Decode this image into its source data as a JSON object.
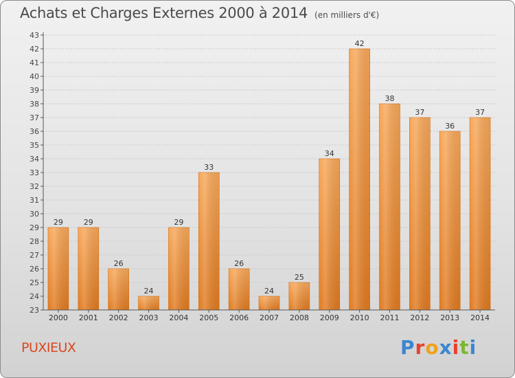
{
  "header": {
    "title": "Achats et Charges Externes 2000 à 2014",
    "unit": "(en milliers d'€)"
  },
  "footer": {
    "commune": "PUXIEUX",
    "logo_text": "Proxiti",
    "logo_colors": [
      "#3a86d1",
      "#e8412c",
      "#f0a21a",
      "#3a86d1",
      "#e8412c",
      "#7cb82f",
      "#3a86d1"
    ]
  },
  "colors": {
    "bar_top": "#f7a85a",
    "bar_bottom": "#e07a20",
    "axis": "#555555",
    "grid": "#c8c8c8",
    "commune": "#d9481f"
  },
  "chart_data": {
    "type": "bar",
    "title": "Achats et Charges Externes 2000 à 2014",
    "subtitle": "(en milliers d'€)",
    "categories": [
      "2000",
      "2001",
      "2002",
      "2003",
      "2004",
      "2005",
      "2006",
      "2007",
      "2008",
      "2009",
      "2010",
      "2011",
      "2012",
      "2013",
      "2014"
    ],
    "values": [
      29,
      29,
      26,
      24,
      29,
      33,
      26,
      24,
      25,
      34,
      42,
      38,
      37,
      36,
      37
    ],
    "ylim": [
      23,
      43
    ],
    "yticks": [
      23,
      24,
      25,
      26,
      27,
      28,
      29,
      30,
      31,
      32,
      33,
      34,
      35,
      36,
      37,
      38,
      39,
      40,
      41,
      42,
      43
    ],
    "grid": true,
    "data_labels": true
  }
}
